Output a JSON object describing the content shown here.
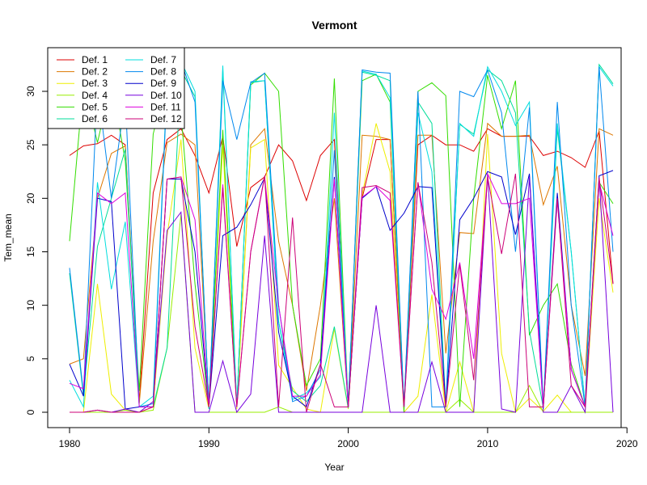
{
  "chart_data": {
    "type": "line",
    "title": "Vermont",
    "xlabel": "Year",
    "ylabel": "Tem_mean",
    "xlim": [
      1980,
      2019
    ],
    "ylim": [
      0,
      32.5
    ],
    "x_ticks": [
      1980,
      1990,
      2000,
      2010,
      2020
    ],
    "y_ticks": [
      0,
      5,
      10,
      15,
      20,
      25,
      30
    ],
    "legend_position": "top-left",
    "grid": false,
    "x": [
      1980,
      1981,
      1982,
      1983,
      1984,
      1985,
      1986,
      1987,
      1988,
      1989,
      1990,
      1991,
      1992,
      1993,
      1994,
      1995,
      1996,
      1997,
      1998,
      1999,
      2000,
      2001,
      2002,
      2003,
      2004,
      2005,
      2006,
      2007,
      2008,
      2009,
      2010,
      2011,
      2012,
      2013,
      2014,
      2015,
      2016,
      2017,
      2018,
      2019
    ],
    "series": [
      {
        "name": "Def. 1",
        "color": "#DD0000",
        "values": [
          24,
          24.9,
          25.1,
          25.9,
          25,
          1,
          20.5,
          25.5,
          26.5,
          24,
          20.5,
          25.8,
          15.5,
          21,
          22,
          25,
          23.5,
          19.8,
          24,
          25.5,
          0.5,
          20,
          25.5,
          25.5,
          0.5,
          25,
          25.9,
          25,
          25,
          24.4,
          26.5,
          25.8,
          25.8,
          25.8,
          24,
          24.4,
          23.8,
          22.9,
          26.3,
          12
        ]
      },
      {
        "name": "Def. 2",
        "color": "#DD7700",
        "values": [
          4.5,
          5,
          20,
          24.2,
          24.9,
          0.8,
          16,
          25.2,
          26,
          25,
          1,
          25.5,
          0.5,
          25,
          26.5,
          16,
          10,
          2,
          10,
          20,
          0.4,
          25.9,
          25.8,
          25.5,
          0.5,
          25.9,
          25.9,
          5.5,
          16.8,
          16.7,
          27,
          25.8,
          25.8,
          25.9,
          19.4,
          23,
          10,
          3.4,
          26.5,
          25.9
        ]
      },
      {
        "name": "Def. 3",
        "color": "#EEEE00",
        "values": [
          0,
          0,
          12,
          1.7,
          0.2,
          0,
          0.5,
          16.5,
          25.5,
          6,
          0.3,
          25,
          0.3,
          24.7,
          25.5,
          4.4,
          2.3,
          0.3,
          0,
          7.8,
          0.3,
          20.3,
          27,
          22.5,
          0,
          1.5,
          11,
          0,
          4.7,
          0,
          26,
          5.5,
          0,
          1.3,
          0.1,
          1.6,
          0,
          0,
          20,
          11.2
        ]
      },
      {
        "name": "Def. 4",
        "color": "#99EE00",
        "values": [
          0,
          0,
          0,
          0,
          0.2,
          0,
          0.2,
          6,
          18.5,
          0,
          0,
          0,
          0,
          0,
          0,
          0.5,
          0,
          0,
          0,
          0,
          0,
          0,
          0,
          0,
          0,
          0,
          0,
          0,
          1.2,
          0,
          0,
          0,
          0,
          2.5,
          0,
          0,
          0,
          0,
          0,
          0
        ]
      },
      {
        "name": "Def. 5",
        "color": "#33DD00",
        "values": [
          16,
          30.8,
          25.2,
          30.9,
          23.5,
          2,
          26,
          31.3,
          28,
          12,
          0.4,
          26.4,
          0.5,
          30.6,
          31.7,
          30,
          10,
          2.5,
          5,
          31.2,
          0.5,
          31,
          31.6,
          29,
          0,
          30,
          30.8,
          29.6,
          0.5,
          20,
          31.5,
          26.5,
          31,
          7.2,
          10,
          12,
          4.5,
          0.5,
          21.5,
          19.5
        ]
      },
      {
        "name": "Def. 6",
        "color": "#00DD99",
        "values": [
          13,
          1.5,
          15.5,
          20,
          24.6,
          0.5,
          0.5,
          6,
          32,
          29.5,
          0.5,
          32,
          0.5,
          30.8,
          31,
          8.5,
          2,
          1,
          2.5,
          8,
          0.4,
          31.8,
          31.5,
          31,
          0.5,
          29,
          27,
          0.5,
          26.9,
          26,
          32,
          31,
          28,
          7.6,
          0.4,
          26.5,
          15,
          0.5,
          32.5,
          30.7
        ]
      },
      {
        "name": "Def. 7",
        "color": "#00DDDD",
        "values": [
          3,
          0.5,
          21.5,
          11.5,
          17.8,
          0.5,
          1.5,
          31,
          32.8,
          30,
          0.3,
          32.4,
          0.5,
          30.9,
          31,
          8.5,
          1.2,
          1.8,
          3.3,
          28,
          0.5,
          31.9,
          31.6,
          29.4,
          0.5,
          28,
          22.5,
          0.5,
          27,
          25.8,
          32.3,
          30,
          26.8,
          29,
          0.5,
          27,
          15,
          0.5,
          32.3,
          30.5
        ]
      },
      {
        "name": "Def. 8",
        "color": "#0088EE",
        "values": [
          13.5,
          1.8,
          30.5,
          20,
          29.5,
          0.5,
          0.8,
          30.5,
          32.8,
          29,
          0.5,
          31,
          25.5,
          30.8,
          31.7,
          10,
          1,
          1.5,
          4,
          24.5,
          0.5,
          32,
          31.8,
          31.7,
          0.5,
          30,
          0.5,
          0.5,
          30,
          29.5,
          32,
          28,
          15,
          28.5,
          0.3,
          29,
          10,
          0.5,
          32.3,
          15
        ]
      },
      {
        "name": "Def. 9",
        "color": "#0000CC",
        "values": [
          4.5,
          1.5,
          20,
          19.7,
          0.3,
          0.5,
          0.5,
          21.8,
          21.8,
          15,
          0.5,
          16.5,
          17.3,
          19.4,
          21.9,
          7.5,
          1.5,
          0.5,
          4.5,
          22,
          0.5,
          20,
          21.1,
          17,
          18.6,
          21.1,
          21,
          0.5,
          18,
          20,
          22.5,
          22,
          16.6,
          22.3,
          0.5,
          20.5,
          4,
          0.5,
          22.1,
          22.6
        ]
      },
      {
        "name": "Def. 10",
        "color": "#7700DD",
        "values": [
          0,
          0,
          0.2,
          0,
          0.3,
          0,
          1,
          17,
          18.7,
          0,
          0,
          4.8,
          0,
          1.7,
          16.5,
          0,
          0,
          0,
          0,
          0,
          0,
          0,
          10,
          0,
          0,
          0,
          4.7,
          0,
          0,
          0,
          22.3,
          0.3,
          0,
          22,
          0,
          0,
          2.5,
          0,
          22,
          0
        ]
      },
      {
        "name": "Def. 11",
        "color": "#DD00DD",
        "values": [
          2.7,
          2.2,
          20.5,
          19.5,
          20.5,
          0.5,
          0.5,
          21.8,
          22,
          18,
          0.5,
          21.3,
          0.5,
          15,
          22,
          10,
          1.5,
          1.5,
          3.5,
          21.8,
          0.5,
          20.1,
          21.1,
          19.8,
          0.5,
          21.5,
          11.5,
          8.7,
          14,
          5,
          22.3,
          19.5,
          19.5,
          20,
          0.5,
          19.8,
          4,
          0.5,
          21.5,
          16.5
        ]
      },
      {
        "name": "Def. 12",
        "color": "#CC0077",
        "values": [
          0,
          0,
          0.2,
          0,
          0,
          0,
          0.5,
          21.8,
          22,
          8,
          0.5,
          21,
          0.5,
          15,
          22.1,
          0.5,
          18.2,
          0,
          4.5,
          0.5,
          0.5,
          21,
          21.2,
          20.5,
          0.5,
          21.5,
          14,
          0.5,
          13.8,
          3,
          22,
          14.8,
          22.3,
          0.5,
          0.5,
          20,
          2.5,
          0.5,
          21.9,
          12
        ]
      }
    ]
  }
}
